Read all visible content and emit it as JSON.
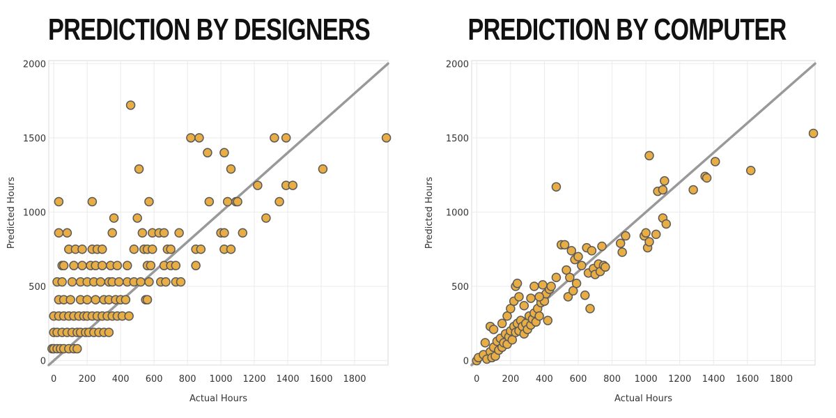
{
  "chart_data": [
    {
      "type": "scatter",
      "title": "PREDICTION BY DESIGNERS",
      "xlabel": "Actual Hours",
      "ylabel": "Predicted Hours",
      "xlim": [
        -30,
        2000
      ],
      "ylim": [
        -30,
        2020
      ],
      "xticks": [
        "0",
        "200",
        "400",
        "600",
        "800",
        "1000",
        "1200",
        "1400",
        "1600",
        "1800"
      ],
      "yticks": [
        "0",
        "500",
        "1000",
        "1500",
        "2000"
      ],
      "reference_line": [
        [
          -30,
          -30
        ],
        [
          2000,
          2000
        ]
      ],
      "grid": true,
      "colors": {
        "point_fill": "#e8ad45",
        "point_stroke": "#595959",
        "line": "#999999",
        "grid": "#ebebeb",
        "axis": "#d8d8d8",
        "text": "#333333"
      },
      "points": [
        [
          -10,
          80
        ],
        [
          0,
          80
        ],
        [
          20,
          80
        ],
        [
          40,
          80
        ],
        [
          60,
          80
        ],
        [
          90,
          80
        ],
        [
          120,
          80
        ],
        [
          140,
          80
        ],
        [
          0,
          190
        ],
        [
          20,
          190
        ],
        [
          50,
          190
        ],
        [
          80,
          190
        ],
        [
          110,
          190
        ],
        [
          140,
          190
        ],
        [
          160,
          190
        ],
        [
          190,
          190
        ],
        [
          210,
          190
        ],
        [
          240,
          190
        ],
        [
          270,
          190
        ],
        [
          300,
          190
        ],
        [
          330,
          190
        ],
        [
          0,
          300
        ],
        [
          30,
          300
        ],
        [
          60,
          300
        ],
        [
          90,
          300
        ],
        [
          120,
          300
        ],
        [
          150,
          300
        ],
        [
          180,
          300
        ],
        [
          200,
          300
        ],
        [
          230,
          300
        ],
        [
          260,
          300
        ],
        [
          290,
          300
        ],
        [
          320,
          300
        ],
        [
          350,
          300
        ],
        [
          380,
          300
        ],
        [
          410,
          300
        ],
        [
          450,
          300
        ],
        [
          30,
          410
        ],
        [
          60,
          410
        ],
        [
          100,
          410
        ],
        [
          160,
          410
        ],
        [
          200,
          410
        ],
        [
          250,
          410
        ],
        [
          300,
          410
        ],
        [
          330,
          410
        ],
        [
          370,
          410
        ],
        [
          400,
          410
        ],
        [
          430,
          410
        ],
        [
          550,
          410
        ],
        [
          560,
          410
        ],
        [
          20,
          530
        ],
        [
          50,
          530
        ],
        [
          110,
          530
        ],
        [
          160,
          530
        ],
        [
          200,
          530
        ],
        [
          240,
          530
        ],
        [
          280,
          530
        ],
        [
          330,
          530
        ],
        [
          350,
          530
        ],
        [
          390,
          530
        ],
        [
          440,
          530
        ],
        [
          480,
          530
        ],
        [
          520,
          530
        ],
        [
          570,
          530
        ],
        [
          640,
          530
        ],
        [
          670,
          530
        ],
        [
          730,
          530
        ],
        [
          760,
          530
        ],
        [
          50,
          640
        ],
        [
          60,
          640
        ],
        [
          120,
          640
        ],
        [
          170,
          640
        ],
        [
          220,
          640
        ],
        [
          250,
          640
        ],
        [
          290,
          640
        ],
        [
          340,
          640
        ],
        [
          380,
          640
        ],
        [
          440,
          640
        ],
        [
          560,
          640
        ],
        [
          580,
          640
        ],
        [
          660,
          640
        ],
        [
          700,
          640
        ],
        [
          730,
          640
        ],
        [
          850,
          640
        ],
        [
          90,
          750
        ],
        [
          130,
          750
        ],
        [
          170,
          750
        ],
        [
          230,
          750
        ],
        [
          260,
          750
        ],
        [
          290,
          750
        ],
        [
          480,
          750
        ],
        [
          540,
          750
        ],
        [
          560,
          750
        ],
        [
          590,
          750
        ],
        [
          680,
          750
        ],
        [
          700,
          750
        ],
        [
          850,
          750
        ],
        [
          880,
          750
        ],
        [
          1020,
          750
        ],
        [
          1060,
          750
        ],
        [
          30,
          860
        ],
        [
          80,
          860
        ],
        [
          350,
          860
        ],
        [
          530,
          860
        ],
        [
          590,
          860
        ],
        [
          630,
          860
        ],
        [
          660,
          860
        ],
        [
          750,
          860
        ],
        [
          1000,
          860
        ],
        [
          1020,
          860
        ],
        [
          1130,
          860
        ],
        [
          360,
          960
        ],
        [
          500,
          960
        ],
        [
          1270,
          960
        ],
        [
          30,
          1070
        ],
        [
          230,
          1070
        ],
        [
          570,
          1070
        ],
        [
          930,
          1070
        ],
        [
          1040,
          1070
        ],
        [
          1090,
          1070
        ],
        [
          1100,
          1070
        ],
        [
          1350,
          1070
        ],
        [
          1390,
          1180
        ],
        [
          1430,
          1180
        ],
        [
          1220,
          1180
        ],
        [
          510,
          1290
        ],
        [
          1060,
          1290
        ],
        [
          1610,
          1290
        ],
        [
          920,
          1400
        ],
        [
          1020,
          1400
        ],
        [
          820,
          1500
        ],
        [
          870,
          1500
        ],
        [
          1320,
          1500
        ],
        [
          1390,
          1500
        ],
        [
          1990,
          1500
        ],
        [
          460,
          1720
        ]
      ]
    },
    {
      "type": "scatter",
      "title": "PREDICTION BY COMPUTER",
      "xlabel": "Actual Hours",
      "ylabel": "Predicted Hours",
      "xlim": [
        -30,
        2000
      ],
      "ylim": [
        -30,
        2020
      ],
      "xticks": [
        "0",
        "200",
        "400",
        "600",
        "800",
        "1000",
        "1200",
        "1400",
        "1600",
        "1800"
      ],
      "yticks": [
        "0",
        "500",
        "1000",
        "1500",
        "2000"
      ],
      "reference_line": [
        [
          -30,
          -30
        ],
        [
          2000,
          2000
        ]
      ],
      "grid": true,
      "colors": {
        "point_fill": "#e8ad45",
        "point_stroke": "#595959",
        "line": "#999999",
        "grid": "#ebebeb",
        "axis": "#d8d8d8",
        "text": "#333333"
      },
      "points": [
        [
          0,
          0
        ],
        [
          10,
          20
        ],
        [
          40,
          40
        ],
        [
          50,
          120
        ],
        [
          60,
          10
        ],
        [
          80,
          60
        ],
        [
          90,
          20
        ],
        [
          100,
          90
        ],
        [
          110,
          30
        ],
        [
          120,
          130
        ],
        [
          130,
          70
        ],
        [
          140,
          150
        ],
        [
          150,
          90
        ],
        [
          160,
          120
        ],
        [
          170,
          180
        ],
        [
          180,
          110
        ],
        [
          190,
          160
        ],
        [
          200,
          200
        ],
        [
          210,
          140
        ],
        [
          220,
          230
        ],
        [
          230,
          190
        ],
        [
          240,
          250
        ],
        [
          250,
          200
        ],
        [
          260,
          270
        ],
        [
          270,
          230
        ],
        [
          280,
          180
        ],
        [
          290,
          250
        ],
        [
          300,
          210
        ],
        [
          310,
          300
        ],
        [
          320,
          240
        ],
        [
          330,
          280
        ],
        [
          340,
          320
        ],
        [
          350,
          260
        ],
        [
          360,
          350
        ],
        [
          370,
          300
        ],
        [
          380,
          390
        ],
        [
          390,
          430
        ],
        [
          400,
          400
        ],
        [
          410,
          450
        ],
        [
          420,
          270
        ],
        [
          430,
          480
        ],
        [
          440,
          500
        ],
        [
          80,
          230
        ],
        [
          100,
          210
        ],
        [
          150,
          250
        ],
        [
          180,
          300
        ],
        [
          200,
          350
        ],
        [
          220,
          400
        ],
        [
          230,
          500
        ],
        [
          240,
          520
        ],
        [
          250,
          430
        ],
        [
          280,
          370
        ],
        [
          320,
          420
        ],
        [
          340,
          500
        ],
        [
          370,
          430
        ],
        [
          390,
          510
        ],
        [
          470,
          560
        ],
        [
          500,
          780
        ],
        [
          520,
          780
        ],
        [
          530,
          610
        ],
        [
          540,
          430
        ],
        [
          550,
          560
        ],
        [
          560,
          740
        ],
        [
          570,
          470
        ],
        [
          580,
          680
        ],
        [
          590,
          520
        ],
        [
          600,
          700
        ],
        [
          620,
          640
        ],
        [
          640,
          440
        ],
        [
          650,
          760
        ],
        [
          660,
          590
        ],
        [
          670,
          350
        ],
        [
          680,
          740
        ],
        [
          690,
          620
        ],
        [
          700,
          580
        ],
        [
          720,
          650
        ],
        [
          730,
          600
        ],
        [
          740,
          770
        ],
        [
          750,
          640
        ],
        [
          760,
          630
        ],
        [
          850,
          790
        ],
        [
          860,
          730
        ],
        [
          880,
          840
        ],
        [
          990,
          840
        ],
        [
          1000,
          860
        ],
        [
          1010,
          760
        ],
        [
          1020,
          800
        ],
        [
          1060,
          850
        ],
        [
          1070,
          1140
        ],
        [
          1100,
          960
        ],
        [
          1100,
          1150
        ],
        [
          1110,
          1210
        ],
        [
          1120,
          920
        ],
        [
          1020,
          1380
        ],
        [
          1280,
          1150
        ],
        [
          1350,
          1240
        ],
        [
          1360,
          1230
        ],
        [
          1410,
          1340
        ],
        [
          1620,
          1280
        ],
        [
          470,
          1170
        ],
        [
          1990,
          1530
        ]
      ]
    }
  ]
}
